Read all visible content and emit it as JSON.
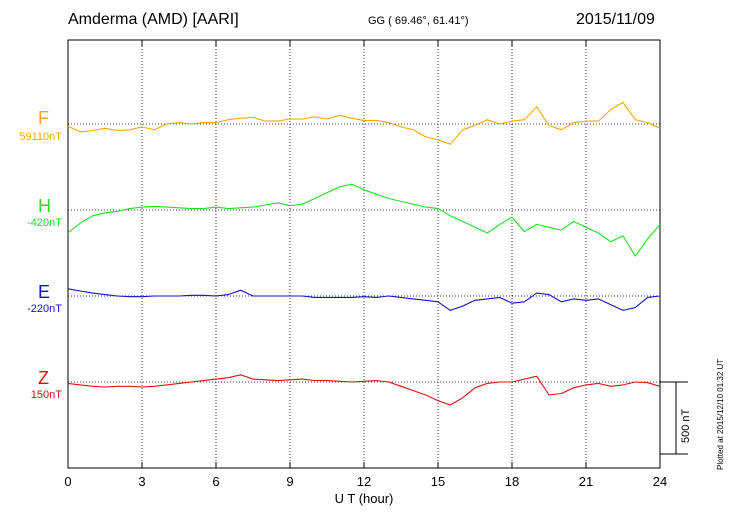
{
  "header": {
    "station": "Amderma (AMD)  [AARI]",
    "coords": "GG ( 69.46°,  61.41°)",
    "date": "2015/11/09"
  },
  "plotted_note": "Plotted at 2015/12/10 01:32 UT",
  "scale_bar_label": "500 nT",
  "colors": {
    "F": "#f2a900",
    "H": "#22dd22",
    "E": "#1010d0",
    "Z": "#e01010"
  },
  "chart_data": {
    "type": "line",
    "title": "Amderma (AMD)  [AARI]",
    "xlabel": "U T (hour)",
    "xlim": [
      0,
      24
    ],
    "x_ticks": [
      "0",
      "3",
      "6",
      "9",
      "12",
      "15",
      "18",
      "21",
      "24"
    ],
    "scale_bar_nT": 500,
    "grid": true,
    "x": [
      0,
      0.5,
      1,
      1.5,
      2,
      2.5,
      3,
      3.5,
      4,
      4.5,
      5,
      5.5,
      6,
      6.5,
      7,
      7.5,
      8,
      8.5,
      9,
      9.5,
      10,
      10.5,
      11,
      11.5,
      12,
      12.5,
      13,
      13.5,
      14,
      14.5,
      15,
      15.5,
      16,
      16.5,
      17,
      17.5,
      18,
      18.5,
      19,
      19.5,
      20,
      20.5,
      21,
      21.5,
      22,
      22.5,
      23,
      23.5,
      24
    ],
    "series": [
      {
        "name": "F",
        "baseline_label": "59110nT",
        "values": [
          -15,
          -55,
          -45,
          -30,
          -45,
          -40,
          -20,
          -40,
          0,
          10,
          0,
          10,
          10,
          30,
          40,
          45,
          20,
          20,
          35,
          35,
          50,
          35,
          60,
          40,
          25,
          25,
          10,
          -20,
          -40,
          -90,
          -110,
          -140,
          -40,
          -10,
          30,
          0,
          20,
          30,
          120,
          -10,
          -40,
          10,
          20,
          20,
          100,
          150,
          30,
          10,
          -30
        ]
      },
      {
        "name": "H",
        "baseline_label": "-420nT",
        "values": [
          -160,
          -90,
          -40,
          -20,
          -10,
          10,
          20,
          25,
          20,
          15,
          10,
          10,
          20,
          10,
          15,
          20,
          35,
          50,
          30,
          40,
          80,
          120,
          160,
          180,
          140,
          110,
          80,
          60,
          40,
          20,
          10,
          -40,
          -80,
          -120,
          -160,
          -100,
          -50,
          -150,
          -100,
          -120,
          -140,
          -80,
          -120,
          -160,
          -220,
          -180,
          -320,
          -200,
          -100
        ]
      },
      {
        "name": "E",
        "baseline_label": "-220nT",
        "values": [
          50,
          35,
          20,
          10,
          0,
          -5,
          -5,
          0,
          0,
          0,
          5,
          5,
          0,
          10,
          40,
          0,
          0,
          0,
          0,
          0,
          -10,
          -10,
          -10,
          -10,
          -5,
          -10,
          0,
          -10,
          -20,
          -30,
          -40,
          -100,
          -70,
          -30,
          -20,
          -10,
          -50,
          -40,
          20,
          10,
          -40,
          -20,
          -30,
          -20,
          -60,
          -100,
          -80,
          -10,
          0
        ]
      },
      {
        "name": "Z",
        "baseline_label": "150nT",
        "values": [
          -10,
          -20,
          -30,
          -35,
          -30,
          -30,
          -35,
          -30,
          -20,
          -10,
          0,
          10,
          20,
          30,
          50,
          20,
          15,
          10,
          15,
          20,
          10,
          10,
          5,
          0,
          5,
          10,
          0,
          -30,
          -60,
          -90,
          -130,
          -160,
          -110,
          -40,
          -10,
          0,
          0,
          20,
          40,
          -90,
          -80,
          -40,
          -20,
          -10,
          -30,
          -20,
          0,
          -5,
          -30
        ]
      }
    ]
  }
}
